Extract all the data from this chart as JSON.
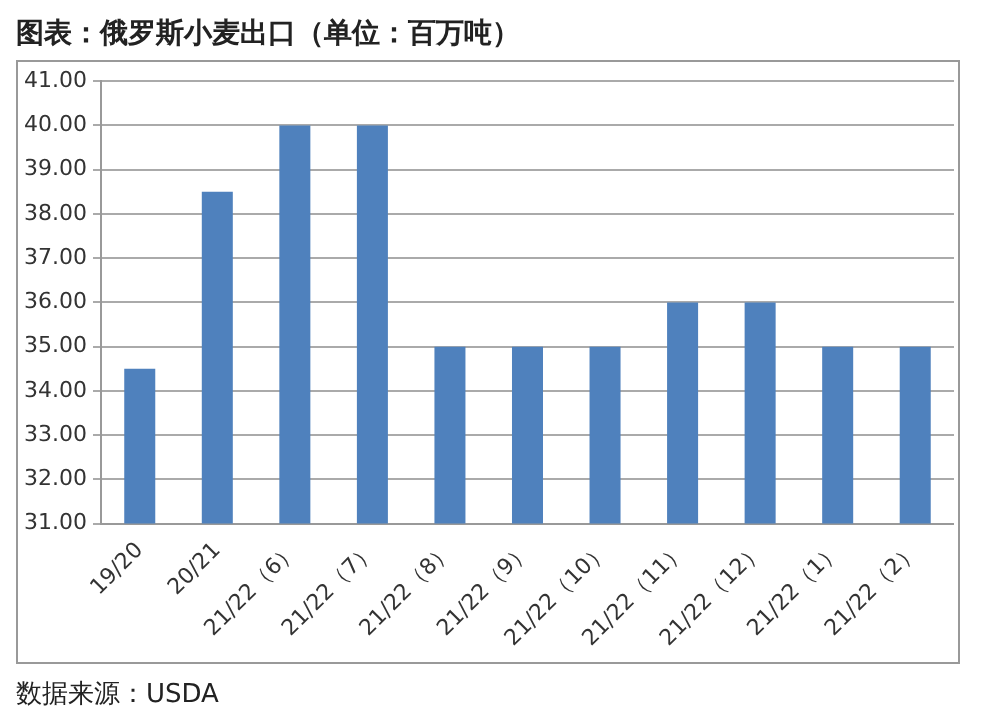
{
  "chart_data": {
    "type": "bar",
    "title": "图表：俄罗斯小麦出口（单位：百万吨）",
    "categories": [
      "19/20",
      "20/21",
      "21/22（6）",
      "21/22（7）",
      "21/22（8）",
      "21/22（9）",
      "21/22（10）",
      "21/22（11）",
      "21/22（12）",
      "21/22（1）",
      "21/22（2）"
    ],
    "values": [
      34.5,
      38.5,
      40,
      40,
      35,
      35,
      35,
      36,
      36,
      35,
      35
    ],
    "color": "#4f81bd",
    "ylim": [
      31,
      41
    ],
    "yticks": [
      {
        "value": 31,
        "label": "31.00"
      },
      {
        "value": 32,
        "label": "32.00"
      },
      {
        "value": 33,
        "label": "33.00"
      },
      {
        "value": 34,
        "label": "34.00"
      },
      {
        "value": 35,
        "label": "35.00"
      },
      {
        "value": 36,
        "label": "36.00"
      },
      {
        "value": 37,
        "label": "37.00"
      },
      {
        "value": 38,
        "label": "38.00"
      },
      {
        "value": 39,
        "label": "39.00"
      },
      {
        "value": 40,
        "label": "40.00"
      },
      {
        "value": 41,
        "label": "41.00"
      }
    ],
    "grid": "y",
    "annotations": [
      "数据来源：USDA"
    ]
  }
}
